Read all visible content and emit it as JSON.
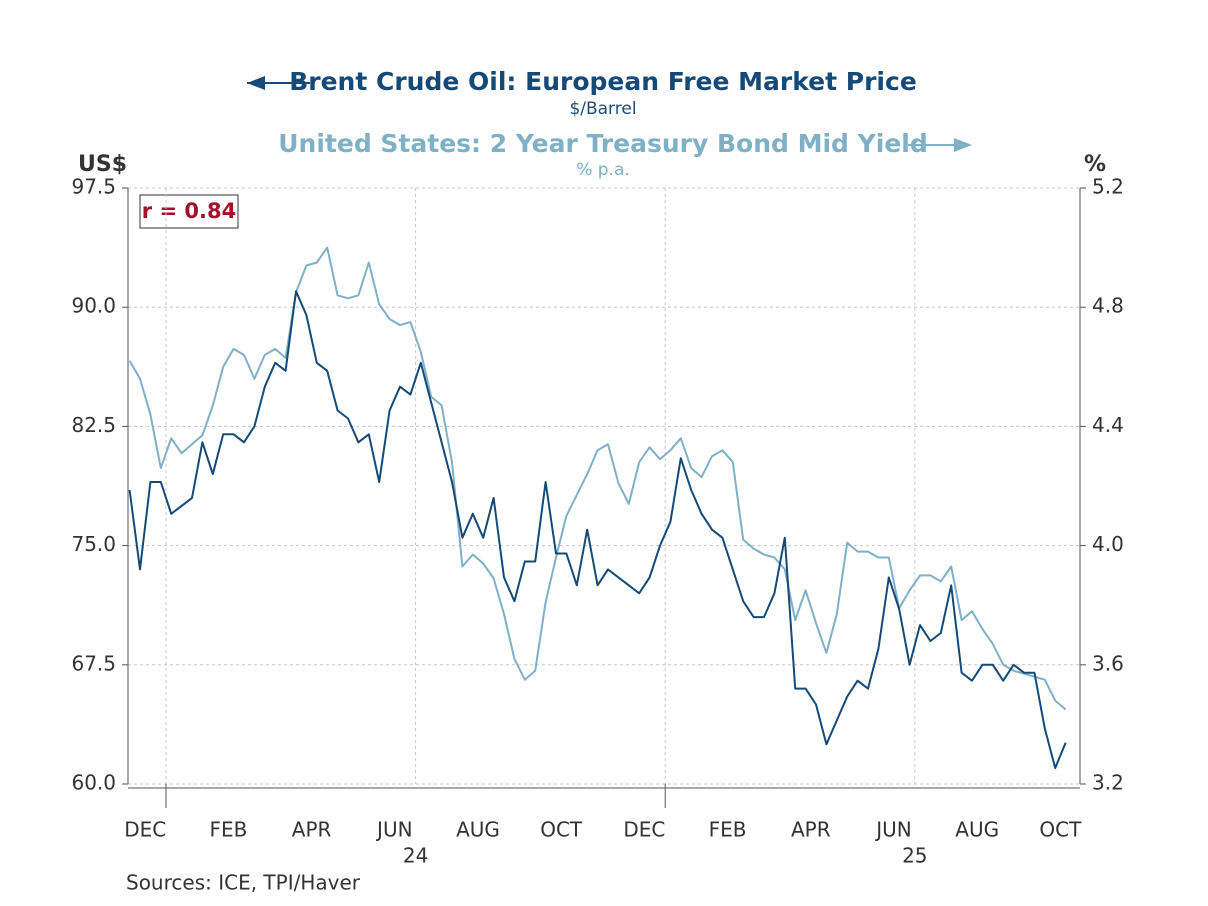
{
  "chart_data": {
    "type": "line",
    "title": "Brent Crude Oil: European Free Market Price",
    "subtitle": "United States: 2 Year Treasury Bond Mid Yield",
    "y_label": "US$",
    "y2_label": "%",
    "annotation": "r = 0.84",
    "source": "Sources:  ICE, TPI/Haver",
    "categories": [
      null,
      null,
      "DEC",
      null,
      null,
      null,
      null,
      null,
      null,
      null,
      "FEB",
      null,
      null,
      null,
      null,
      null,
      null,
      null,
      "APR",
      null,
      null,
      null,
      null,
      null,
      null,
      null,
      "JUN",
      null,
      null,
      null,
      null,
      null,
      null,
      null,
      "AUG",
      null,
      null,
      null,
      null,
      null,
      null,
      null,
      "OCT",
      null,
      null,
      null,
      null,
      null,
      null,
      null,
      "DEC",
      null,
      null,
      null,
      null,
      null,
      null,
      null,
      "FEB",
      null,
      null,
      null,
      null,
      null,
      null,
      null,
      "APR",
      null,
      null,
      null,
      null,
      null,
      null,
      null,
      "JUN",
      null,
      null,
      null,
      null,
      null,
      null,
      null,
      "AUG",
      null,
      null,
      null,
      null,
      null,
      null,
      null,
      "OCT"
    ],
    "year_labels": [
      null,
      null,
      null,
      null,
      null,
      null,
      null,
      null,
      null,
      null,
      null,
      null,
      null,
      null,
      null,
      null,
      null,
      null,
      null,
      null,
      null,
      null,
      null,
      null,
      null,
      null,
      null,
      null,
      "24",
      null,
      null,
      null,
      null,
      null,
      null,
      null,
      null,
      null,
      null,
      null,
      null,
      null,
      null,
      null,
      null,
      null,
      null,
      null,
      null,
      null,
      null,
      null,
      null,
      null,
      null,
      null,
      null,
      null,
      null,
      null,
      null,
      null,
      null,
      null,
      null,
      null,
      null,
      null,
      null,
      null,
      null,
      null,
      null,
      null,
      null,
      null,
      "25",
      null,
      null,
      null,
      null,
      null,
      null,
      null,
      null,
      null,
      null,
      null,
      null,
      null,
      null
    ],
    "series": [
      {
        "name": "Brent Crude Oil: European Free Market Price",
        "unit": "$/Barrel",
        "color": "#154a78",
        "axis": "y",
        "values": [
          78.5,
          73.5,
          79,
          79,
          77,
          77.5,
          78,
          81.5,
          79.5,
          82,
          82,
          81.5,
          82.5,
          85,
          86.5,
          86,
          91,
          89.5,
          86.5,
          86,
          83.5,
          83,
          81.5,
          82,
          79,
          83.5,
          85,
          84.5,
          86.5,
          84,
          81.5,
          79,
          75.5,
          77,
          75.5,
          78,
          73,
          71.5,
          74,
          74,
          79,
          74.5,
          74.5,
          72.5,
          76,
          72.5,
          73.5,
          73,
          72.5,
          72,
          73,
          75,
          76.5,
          80.5,
          78.5,
          77,
          76,
          75.5,
          73.5,
          71.5,
          70.5,
          70.5,
          72,
          75.5,
          66,
          66,
          65,
          62.5,
          64,
          65.5,
          66.5,
          66,
          68.5,
          73,
          71,
          67.5,
          70,
          69,
          69.5,
          72.5,
          67,
          66.5,
          67.5,
          67.5,
          66.5,
          67.5,
          67,
          67,
          63.5,
          61,
          62.6
        ]
      },
      {
        "name": "United States: 2 Year Treasury Bond Mid Yield",
        "unit": "% p.a.",
        "color": "#7fb0c6",
        "axis": "y2",
        "values": [
          4.62,
          4.56,
          4.44,
          4.26,
          4.36,
          4.31,
          4.34,
          4.37,
          4.47,
          4.6,
          4.66,
          4.64,
          4.56,
          4.64,
          4.66,
          4.63,
          4.85,
          4.94,
          4.95,
          5.0,
          4.84,
          4.83,
          4.84,
          4.95,
          4.81,
          4.76,
          4.74,
          4.75,
          4.65,
          4.5,
          4.47,
          4.28,
          3.93,
          3.97,
          3.94,
          3.89,
          3.77,
          3.62,
          3.55,
          3.58,
          3.81,
          3.96,
          4.1,
          4.17,
          4.24,
          4.32,
          4.34,
          4.21,
          4.14,
          4.28,
          4.33,
          4.29,
          4.32,
          4.36,
          4.26,
          4.23,
          4.3,
          4.32,
          4.28,
          4.02,
          3.99,
          3.97,
          3.96,
          3.92,
          3.75,
          3.85,
          3.74,
          3.64,
          3.77,
          4.01,
          3.98,
          3.98,
          3.96,
          3.96,
          3.79,
          3.85,
          3.9,
          3.9,
          3.88,
          3.93,
          3.75,
          3.78,
          3.72,
          3.67,
          3.6,
          3.58,
          3.57,
          3.56,
          3.55,
          3.48,
          3.45
        ]
      }
    ],
    "ylim": [
      60,
      97.5
    ],
    "yticks": [
      {
        "value": 60,
        "label": "60.0"
      },
      67.5,
      {
        "value": 75,
        "label": "75.0"
      },
      82.5,
      {
        "value": 90,
        "label": "90.0"
      },
      97.5
    ],
    "y2lim": [
      3.2,
      5.2
    ],
    "y2ticks": [
      3.2,
      3.6,
      {
        "value": 4,
        "label": "4.0"
      },
      4.4,
      4.8,
      5.2
    ],
    "grid": true
  }
}
